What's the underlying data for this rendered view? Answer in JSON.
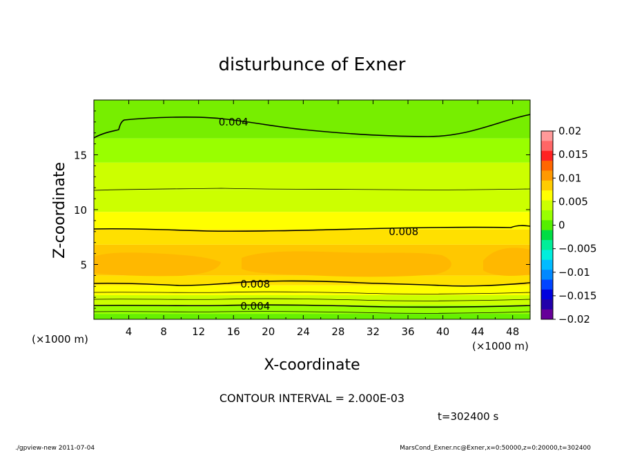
{
  "chart_data": {
    "type": "heatmap",
    "title": "disturbunce of Exner",
    "xlabel": "X-coordinate",
    "ylabel": "Z-coordinate",
    "x_unit": "(×1000 m)",
    "z_unit": "(×1000 m)",
    "xlim": [
      0,
      50
    ],
    "ylim": [
      0,
      20
    ],
    "x_ticks": [
      "4",
      "8",
      "12",
      "16",
      "20",
      "24",
      "28",
      "32",
      "36",
      "40",
      "44",
      "48"
    ],
    "y_ticks": [
      "5",
      "10",
      "15"
    ],
    "contour_labels": [
      {
        "text": "0.004",
        "x": 16.0,
        "z": 18.0
      },
      {
        "text": "0.008",
        "x": 35.5,
        "z": 8.0
      },
      {
        "text": "0.008",
        "x": 18.5,
        "z": 3.2
      },
      {
        "text": "0.004",
        "x": 18.5,
        "z": 1.2
      }
    ],
    "bands": [
      {
        "z0": 0.0,
        "z1": 0.5,
        "color": "#66f000"
      },
      {
        "z0": 0.5,
        "z1": 1.3,
        "color": "#99ff00"
      },
      {
        "z0": 1.3,
        "z1": 2.2,
        "color": "#ccff00"
      },
      {
        "z0": 2.2,
        "z1": 3.1,
        "color": "#ffff00"
      },
      {
        "z0": 3.1,
        "z1": 4.0,
        "color": "#ffe000"
      },
      {
        "z0": 4.0,
        "z1": 6.8,
        "color": "#ffc800"
      },
      {
        "z0": 6.8,
        "z1": 8.2,
        "color": "#ffe000"
      },
      {
        "z0": 8.2,
        "z1": 9.8,
        "color": "#ffff00"
      },
      {
        "z0": 9.8,
        "z1": 11.8,
        "color": "#ccff00"
      },
      {
        "z0": 11.8,
        "z1": 14.3,
        "color": "#ccff00"
      },
      {
        "z0": 14.3,
        "z1": 16.5,
        "color": "#99ff00"
      },
      {
        "z0": 16.5,
        "z1": 20.0,
        "color": "#77ee00"
      }
    ],
    "colorbar": {
      "labels": [
        "0.02",
        "0.015",
        "0.01",
        "0.005",
        "0",
        "−0.005",
        "−0.01",
        "−0.015",
        "−0.02"
      ],
      "colors": [
        "#ff9999",
        "#ff6666",
        "#ff2222",
        "#ff6600",
        "#ff9900",
        "#ffcc00",
        "#ffff00",
        "#ccff00",
        "#99ff00",
        "#55ee00",
        "#00dd44",
        "#00ee99",
        "#00eedd",
        "#00bbff",
        "#0088ff",
        "#0044ff",
        "#0000dd",
        "#2200aa",
        "#660099"
      ]
    },
    "contour_interval": "CONTOUR INTERVAL = 2.000E-03",
    "time_label": "t=302400 s",
    "footer_left": "./gpview-new  2011-07-04",
    "footer_right": "MarsCond_Exner.nc@Exner,x=0:50000,z=0:20000,t=302400"
  }
}
